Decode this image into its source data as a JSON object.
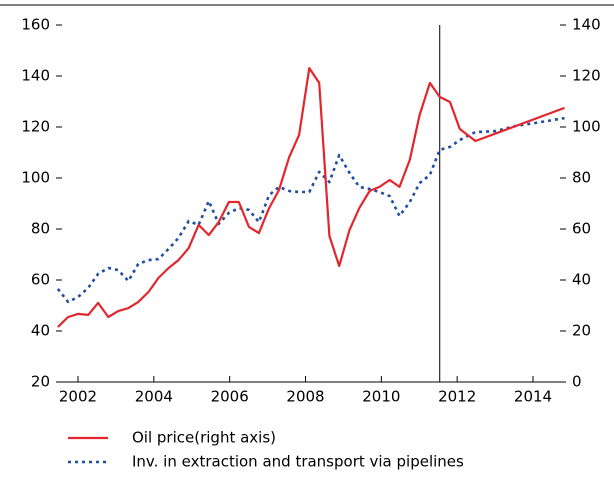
{
  "chart_data": {
    "type": "line",
    "xlim": [
      2001.42,
      2014.87
    ],
    "xticks": [
      2002,
      2004,
      2006,
      2008,
      2010,
      2012,
      2014
    ],
    "ylim": [
      20,
      160
    ],
    "yticks": [
      20,
      40,
      60,
      80,
      100,
      120,
      140,
      160
    ],
    "y2lim": [
      0,
      140
    ],
    "y2ticks": [
      0,
      20,
      40,
      60,
      80,
      100,
      120,
      140
    ],
    "vline": 2011.54,
    "legend": "bottom",
    "series": [
      {
        "name": "Oil price(right axis)",
        "color": "#e3262d",
        "axis": "y2",
        "dash": "solid",
        "x": [
          2001.47,
          2001.74,
          2002.0,
          2002.27,
          2002.53,
          2002.8,
          2003.06,
          2003.33,
          2003.59,
          2003.86,
          2004.12,
          2004.39,
          2004.65,
          2004.92,
          2005.18,
          2005.45,
          2005.71,
          2005.98,
          2006.24,
          2006.51,
          2006.77,
          2007.04,
          2007.3,
          2007.57,
          2007.83,
          2008.1,
          2008.36,
          2008.63,
          2008.89,
          2009.16,
          2009.42,
          2009.69,
          2009.95,
          2010.22,
          2010.48,
          2010.75,
          2011.01,
          2011.28,
          2011.54,
          2011.81,
          2012.07,
          2012.48,
          2014.83
        ],
        "values": [
          21.6,
          25.5,
          26.7,
          26.3,
          31,
          25.5,
          27.8,
          29,
          31.4,
          35.3,
          40.8,
          44.7,
          47.8,
          52.5,
          61.6,
          57.6,
          62.7,
          70.6,
          70.6,
          60.8,
          58.4,
          68.2,
          75.3,
          88.2,
          96.9,
          123.1,
          117.3,
          57.3,
          45.5,
          59.6,
          68.2,
          74.9,
          76.5,
          79.2,
          76.5,
          87.1,
          104.7,
          117.3,
          111.8,
          109.8,
          99.2,
          94.5,
          107.5
        ]
      },
      {
        "name": "Inv. in extraction and transport via pipelines",
        "color": "#1f4e9c",
        "axis": "y",
        "dash": "dotted",
        "x": [
          2001.47,
          2001.74,
          2002.0,
          2002.27,
          2002.53,
          2002.8,
          2003.06,
          2003.33,
          2003.59,
          2003.86,
          2004.12,
          2004.39,
          2004.65,
          2004.92,
          2005.18,
          2005.45,
          2005.71,
          2005.98,
          2006.24,
          2006.51,
          2006.77,
          2007.04,
          2007.3,
          2007.57,
          2007.83,
          2008.1,
          2008.36,
          2008.63,
          2008.89,
          2009.16,
          2009.42,
          2009.69,
          2009.95,
          2010.22,
          2010.48,
          2010.75,
          2011.01,
          2011.28,
          2011.54,
          2011.81,
          2012.07,
          2012.48,
          2013.01,
          2013.54,
          2014.07,
          2014.83
        ],
        "values": [
          56.5,
          51.4,
          53.3,
          56.9,
          62.4,
          64.7,
          63.9,
          59.6,
          66.3,
          67.8,
          68.2,
          72.2,
          76.5,
          83.1,
          81.6,
          91,
          82,
          86.3,
          88.2,
          87.5,
          82.7,
          93.3,
          96.5,
          94.9,
          94.5,
          94.5,
          102.4,
          98.4,
          109,
          102,
          96.5,
          95.7,
          94.5,
          92.9,
          85.1,
          90.6,
          98,
          101.2,
          111,
          112.2,
          114.9,
          118,
          118.4,
          120.4,
          121.6,
          123.5
        ]
      }
    ]
  }
}
